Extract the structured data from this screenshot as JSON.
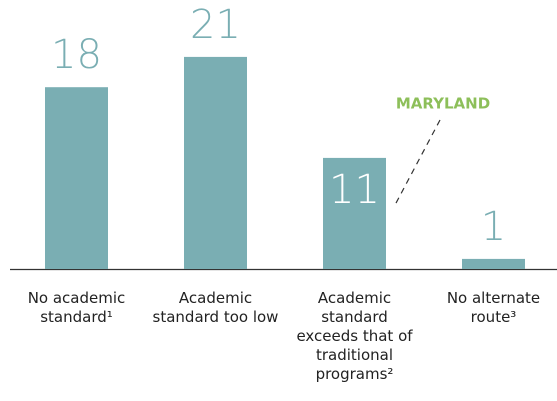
{
  "chart_data": {
    "type": "bar",
    "categories": [
      "No academic standard¹",
      "Academic standard too low",
      "Academic standard exceeds that of traditional programs²",
      "No alternate route³"
    ],
    "values": [
      18,
      21,
      11,
      1
    ],
    "color": "#7aaeb3",
    "annotation": "MARYLAND"
  }
}
